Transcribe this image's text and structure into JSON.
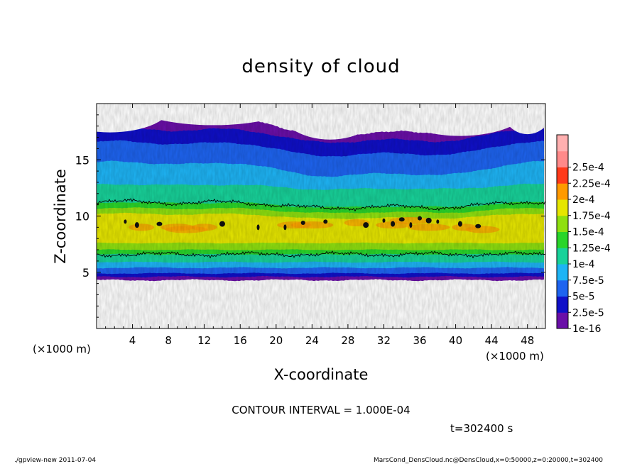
{
  "chart_data": {
    "type": "heatmap",
    "title": "density of cloud",
    "xlabel": "X-coordinate",
    "ylabel": "Z-coordinate",
    "x_unit": "(×1000 m)",
    "x_unit_right": "(×1000 m)",
    "xlim": [
      0,
      50
    ],
    "ylim": [
      0,
      20
    ],
    "x_ticks": [
      4,
      8,
      12,
      16,
      20,
      24,
      28,
      32,
      36,
      40,
      44,
      48
    ],
    "x_tick_labels": [
      "4",
      "8",
      "12",
      "16",
      "20",
      "24",
      "28",
      "32",
      "36",
      "40",
      "44",
      "48"
    ],
    "y_ticks": [
      5,
      10,
      15
    ],
    "y_tick_labels": [
      "5",
      "10",
      "15"
    ],
    "colorbar": {
      "levels": [
        "1e-16",
        "2.5e-5",
        "5e-5",
        "7.5e-5",
        "1e-4",
        "1.25e-4",
        "1.5e-4",
        "1.75e-4",
        "2e-4",
        "2.25e-4",
        "2.5e-4"
      ],
      "colors": [
        "#6a0fa8",
        "#1010c8",
        "#1e64f0",
        "#1eb4f5",
        "#18d29a",
        "#2ad52a",
        "#8fe010",
        "#e6e600",
        "#ff9a00",
        "#ff3a1a",
        "#ff8a8a",
        "#ffb0b0"
      ]
    },
    "contour_interval_text": "CONTOUR INTERVAL = 1.000E-04",
    "time_text": "t=302400 s",
    "footer_left": "./gpview-new  2011-07-04",
    "footer_right": "MarsCond_DensCloud.nc@DensCloud,x=0:50000,z=0:20000,t=302400"
  }
}
